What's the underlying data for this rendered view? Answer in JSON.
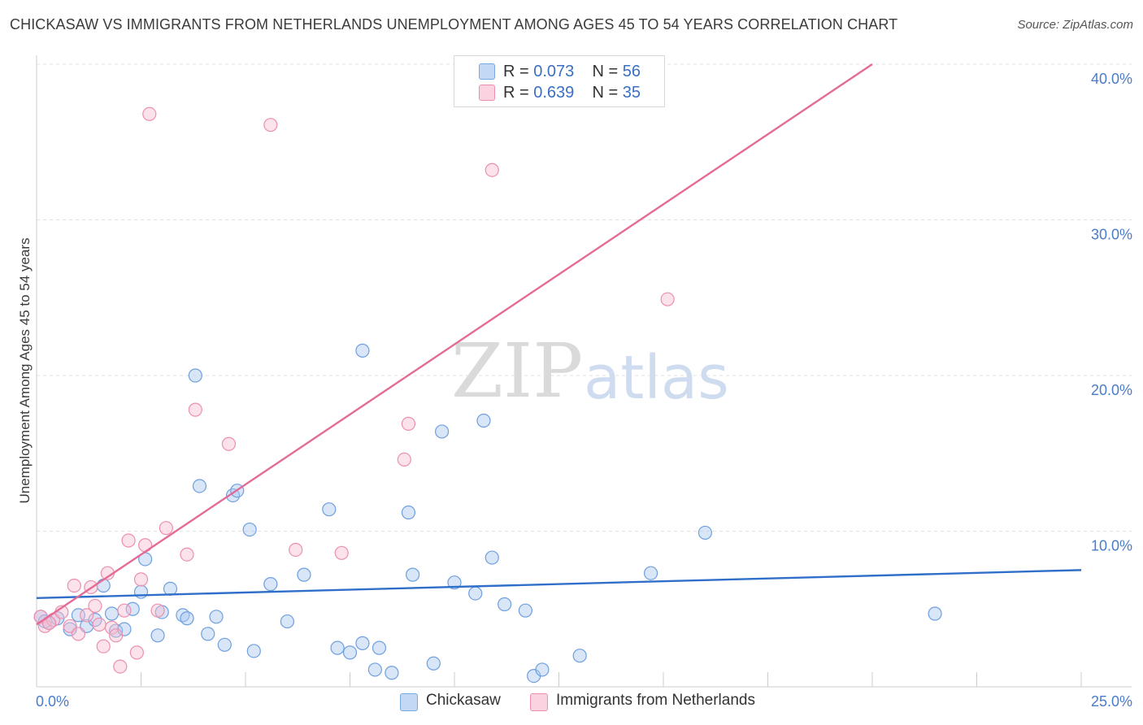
{
  "title": "CHICKASAW VS IMMIGRANTS FROM NETHERLANDS UNEMPLOYMENT AMONG AGES 45 TO 54 YEARS CORRELATION CHART",
  "source": "Source: ZipAtlas.com",
  "watermark": {
    "zip": "ZIP",
    "atlas": "atlas"
  },
  "legend": {
    "r_label": "R =",
    "n_label": "N =",
    "series": [
      {
        "name": "Chickasaw",
        "r": "0.073",
        "n": "56",
        "color": "#a9c8f0",
        "stroke": "#7aa7e0"
      },
      {
        "name": "Immigrants from Netherlands",
        "r": "0.639",
        "n": "35",
        "color": "#f7bfd2",
        "stroke": "#ec8fae"
      }
    ]
  },
  "chart_data": {
    "type": "scatter",
    "title": "CHICKASAW VS IMMIGRANTS FROM NETHERLANDS UNEMPLOYMENT AMONG AGES 45 TO 54 YEARS CORRELATION CHART",
    "xlabel": "",
    "ylabel": "Unemployment Among Ages 45 to 54 years",
    "xlim": [
      0,
      25
    ],
    "ylim": [
      0,
      40
    ],
    "x_tick_labels": [
      "0.0%",
      "25.0%"
    ],
    "y_ticks": [
      10,
      20,
      30,
      40
    ],
    "y_tick_labels": [
      "10.0%",
      "20.0%",
      "30.0%",
      "40.0%"
    ],
    "grid": true,
    "legend_position": "top-center",
    "series": [
      {
        "name": "Chickasaw",
        "color": "#5b8fd8",
        "trend": {
          "x": [
            0,
            25
          ],
          "y": [
            5.7,
            7.5
          ],
          "color": "#2f6fc9"
        },
        "points": [
          {
            "x": 0.1,
            "y": 4.5
          },
          {
            "x": 0.3,
            "y": 4.1
          },
          {
            "x": 0.5,
            "y": 4.4
          },
          {
            "x": 0.8,
            "y": 3.7
          },
          {
            "x": 1.0,
            "y": 4.6
          },
          {
            "x": 1.2,
            "y": 3.9
          },
          {
            "x": 1.4,
            "y": 4.3
          },
          {
            "x": 1.6,
            "y": 6.5
          },
          {
            "x": 1.8,
            "y": 4.7
          },
          {
            "x": 1.9,
            "y": 3.6
          },
          {
            "x": 2.1,
            "y": 3.7
          },
          {
            "x": 2.3,
            "y": 5.0
          },
          {
            "x": 2.5,
            "y": 6.1
          },
          {
            "x": 2.6,
            "y": 8.2
          },
          {
            "x": 2.9,
            "y": 3.3
          },
          {
            "x": 3.0,
            "y": 4.8
          },
          {
            "x": 3.2,
            "y": 6.3
          },
          {
            "x": 3.5,
            "y": 4.6
          },
          {
            "x": 3.6,
            "y": 4.4
          },
          {
            "x": 3.8,
            "y": 20.0
          },
          {
            "x": 3.9,
            "y": 12.9
          },
          {
            "x": 4.1,
            "y": 3.4
          },
          {
            "x": 4.3,
            "y": 4.5
          },
          {
            "x": 4.5,
            "y": 2.7
          },
          {
            "x": 4.7,
            "y": 12.3
          },
          {
            "x": 4.8,
            "y": 12.6
          },
          {
            "x": 5.1,
            "y": 10.1
          },
          {
            "x": 5.2,
            "y": 2.3
          },
          {
            "x": 5.6,
            "y": 6.6
          },
          {
            "x": 6.0,
            "y": 4.2
          },
          {
            "x": 6.4,
            "y": 7.2
          },
          {
            "x": 7.0,
            "y": 11.4
          },
          {
            "x": 7.2,
            "y": 2.5
          },
          {
            "x": 7.5,
            "y": 2.2
          },
          {
            "x": 7.8,
            "y": 2.8
          },
          {
            "x": 7.8,
            "y": 21.6
          },
          {
            "x": 8.1,
            "y": 1.1
          },
          {
            "x": 8.2,
            "y": 2.5
          },
          {
            "x": 8.5,
            "y": 0.9
          },
          {
            "x": 8.9,
            "y": 11.2
          },
          {
            "x": 9.0,
            "y": 7.2
          },
          {
            "x": 9.5,
            "y": 1.5
          },
          {
            "x": 9.7,
            "y": 16.4
          },
          {
            "x": 10.0,
            "y": 6.7
          },
          {
            "x": 10.5,
            "y": 6.0
          },
          {
            "x": 10.7,
            "y": 17.1
          },
          {
            "x": 10.9,
            "y": 8.3
          },
          {
            "x": 11.2,
            "y": 5.3
          },
          {
            "x": 11.7,
            "y": 4.9
          },
          {
            "x": 11.9,
            "y": 0.7
          },
          {
            "x": 12.1,
            "y": 1.1
          },
          {
            "x": 13.0,
            "y": 2.0
          },
          {
            "x": 14.7,
            "y": 7.3
          },
          {
            "x": 16.0,
            "y": 9.9
          },
          {
            "x": 21.5,
            "y": 4.7
          },
          {
            "x": 0.2,
            "y": 4.2
          }
        ]
      },
      {
        "name": "Immigrants from Netherlands",
        "color": "#ef93b3",
        "trend": {
          "x": [
            0,
            20
          ],
          "y": [
            4.0,
            40.0
          ],
          "color": "#e46b97"
        },
        "points": [
          {
            "x": 0.1,
            "y": 4.5
          },
          {
            "x": 0.2,
            "y": 3.9
          },
          {
            "x": 0.4,
            "y": 4.3
          },
          {
            "x": 0.6,
            "y": 4.8
          },
          {
            "x": 0.8,
            "y": 3.9
          },
          {
            "x": 0.9,
            "y": 6.5
          },
          {
            "x": 1.0,
            "y": 3.4
          },
          {
            "x": 1.2,
            "y": 4.6
          },
          {
            "x": 1.3,
            "y": 6.4
          },
          {
            "x": 1.4,
            "y": 5.2
          },
          {
            "x": 1.5,
            "y": 4.0
          },
          {
            "x": 1.6,
            "y": 2.6
          },
          {
            "x": 1.7,
            "y": 7.3
          },
          {
            "x": 1.8,
            "y": 3.8
          },
          {
            "x": 1.9,
            "y": 3.3
          },
          {
            "x": 2.0,
            "y": 1.3
          },
          {
            "x": 2.1,
            "y": 4.9
          },
          {
            "x": 2.2,
            "y": 9.4
          },
          {
            "x": 2.4,
            "y": 2.2
          },
          {
            "x": 2.5,
            "y": 6.9
          },
          {
            "x": 2.6,
            "y": 9.1
          },
          {
            "x": 2.7,
            "y": 36.8
          },
          {
            "x": 2.9,
            "y": 4.9
          },
          {
            "x": 3.1,
            "y": 10.2
          },
          {
            "x": 3.6,
            "y": 8.5
          },
          {
            "x": 3.8,
            "y": 17.8
          },
          {
            "x": 4.6,
            "y": 15.6
          },
          {
            "x": 5.6,
            "y": 36.1
          },
          {
            "x": 6.2,
            "y": 8.8
          },
          {
            "x": 7.3,
            "y": 8.6
          },
          {
            "x": 8.8,
            "y": 14.6
          },
          {
            "x": 8.9,
            "y": 16.9
          },
          {
            "x": 10.9,
            "y": 33.2
          },
          {
            "x": 15.1,
            "y": 24.9
          },
          {
            "x": 0.3,
            "y": 4.1
          }
        ]
      }
    ]
  }
}
